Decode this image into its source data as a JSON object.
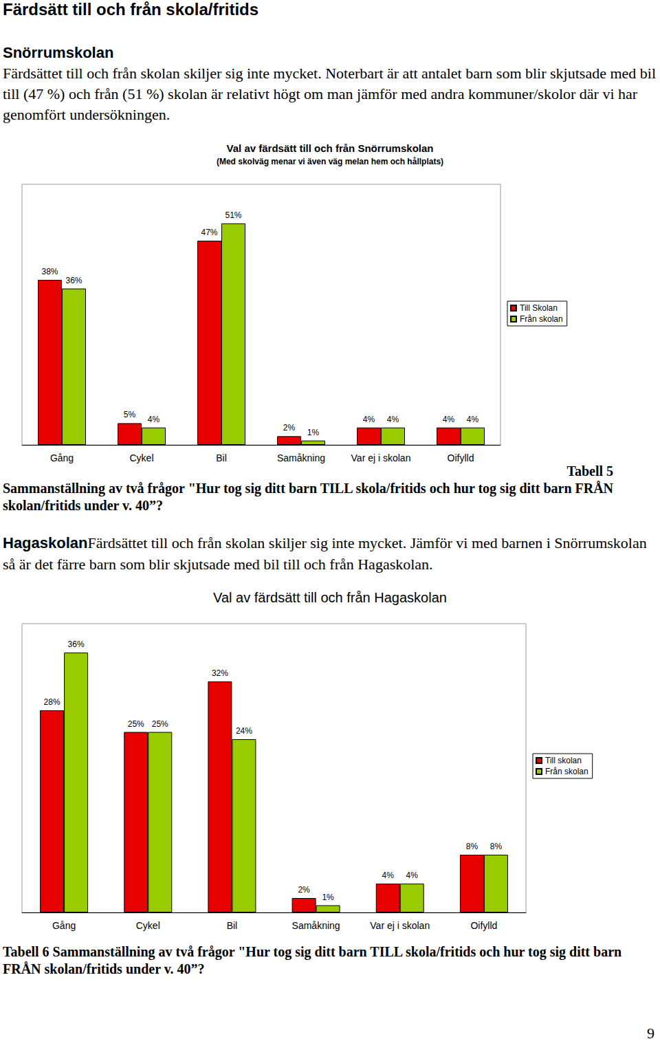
{
  "page": {
    "heading": "Färdsätt till och från skola/fritids",
    "sections": [
      {
        "title": "Snörrumskolan",
        "text": "Färdsättet till och från skolan skiljer sig inte mycket. Noterbart är att antalet barn som blir skjutsade med bil till (47 %) och från (51 %) skolan är relativt högt om man jämför med andra kommuner/skolor där vi har genomfört undersökningen.",
        "caption_label": "Tabell 5",
        "caption": "Sammanställning av två frågor \"Hur tog sig ditt barn TILL skola/fritids och hur tog sig ditt barn FRÅN skolan/fritids under v. 40”?"
      },
      {
        "title": "Hagaskolan",
        "text": "Färdsättet till och från skolan skiljer sig inte mycket. Jämför vi med barnen i Snörrumskolan så är det färre barn som blir skjutsade med bil till och från Hagaskolan.",
        "caption_label": "Tabell 6",
        "caption": "Sammanställning av två frågor \"Hur tog sig ditt barn TILL skola/fritids och hur tog sig ditt barn FRÅN skolan/fritids under v. 40”?"
      }
    ],
    "page_number": 9
  },
  "chart_data": [
    {
      "type": "bar",
      "title": "Val av färdsätt till och från Snörrumskolan",
      "subtitle": "(Med skolväg menar vi även väg melan hem och hållplats)",
      "categories": [
        "Gång",
        "Cykel",
        "Bil",
        "Samåkning",
        "Var ej i skolan",
        "Oifylld"
      ],
      "series": [
        {
          "name": "Till Skolan",
          "color": "#e60000",
          "values": [
            38,
            5,
            47,
            2,
            4,
            4
          ],
          "value_labels": [
            "38%",
            "5%",
            "47%",
            "2%",
            "4%",
            "4%"
          ]
        },
        {
          "name": "Från skolan",
          "color": "#99cc00",
          "values": [
            36,
            4,
            51,
            1,
            4,
            4
          ],
          "value_labels": [
            "36%",
            "4%",
            "51%",
            "1%",
            "4%",
            "4%"
          ]
        }
      ],
      "ylim": [
        0,
        60
      ],
      "grid": false,
      "legend": "right",
      "data_labels": true,
      "tick_labels": "x"
    },
    {
      "type": "bar",
      "title": "Val av färdsätt till och från Hagaskolan",
      "categories": [
        "Gång",
        "Cykel",
        "Bil",
        "Samåkning",
        "Var ej i skolan",
        "Oifylld"
      ],
      "series": [
        {
          "name": "Till skolan",
          "color": "#e60000",
          "values": [
            28,
            25,
            32,
            2,
            4,
            8
          ],
          "value_labels": [
            "28%",
            "25%",
            "32%",
            "2%",
            "4%",
            "8%"
          ]
        },
        {
          "name": "Från skolan",
          "color": "#99cc00",
          "values": [
            36,
            25,
            24,
            1,
            4,
            8
          ],
          "value_labels": [
            "36%",
            "25%",
            "24%",
            "1%",
            "4%",
            "8%"
          ]
        }
      ],
      "ylim": [
        0,
        40
      ],
      "grid": false,
      "legend": "right",
      "data_labels": true,
      "tick_labels": "x"
    }
  ]
}
